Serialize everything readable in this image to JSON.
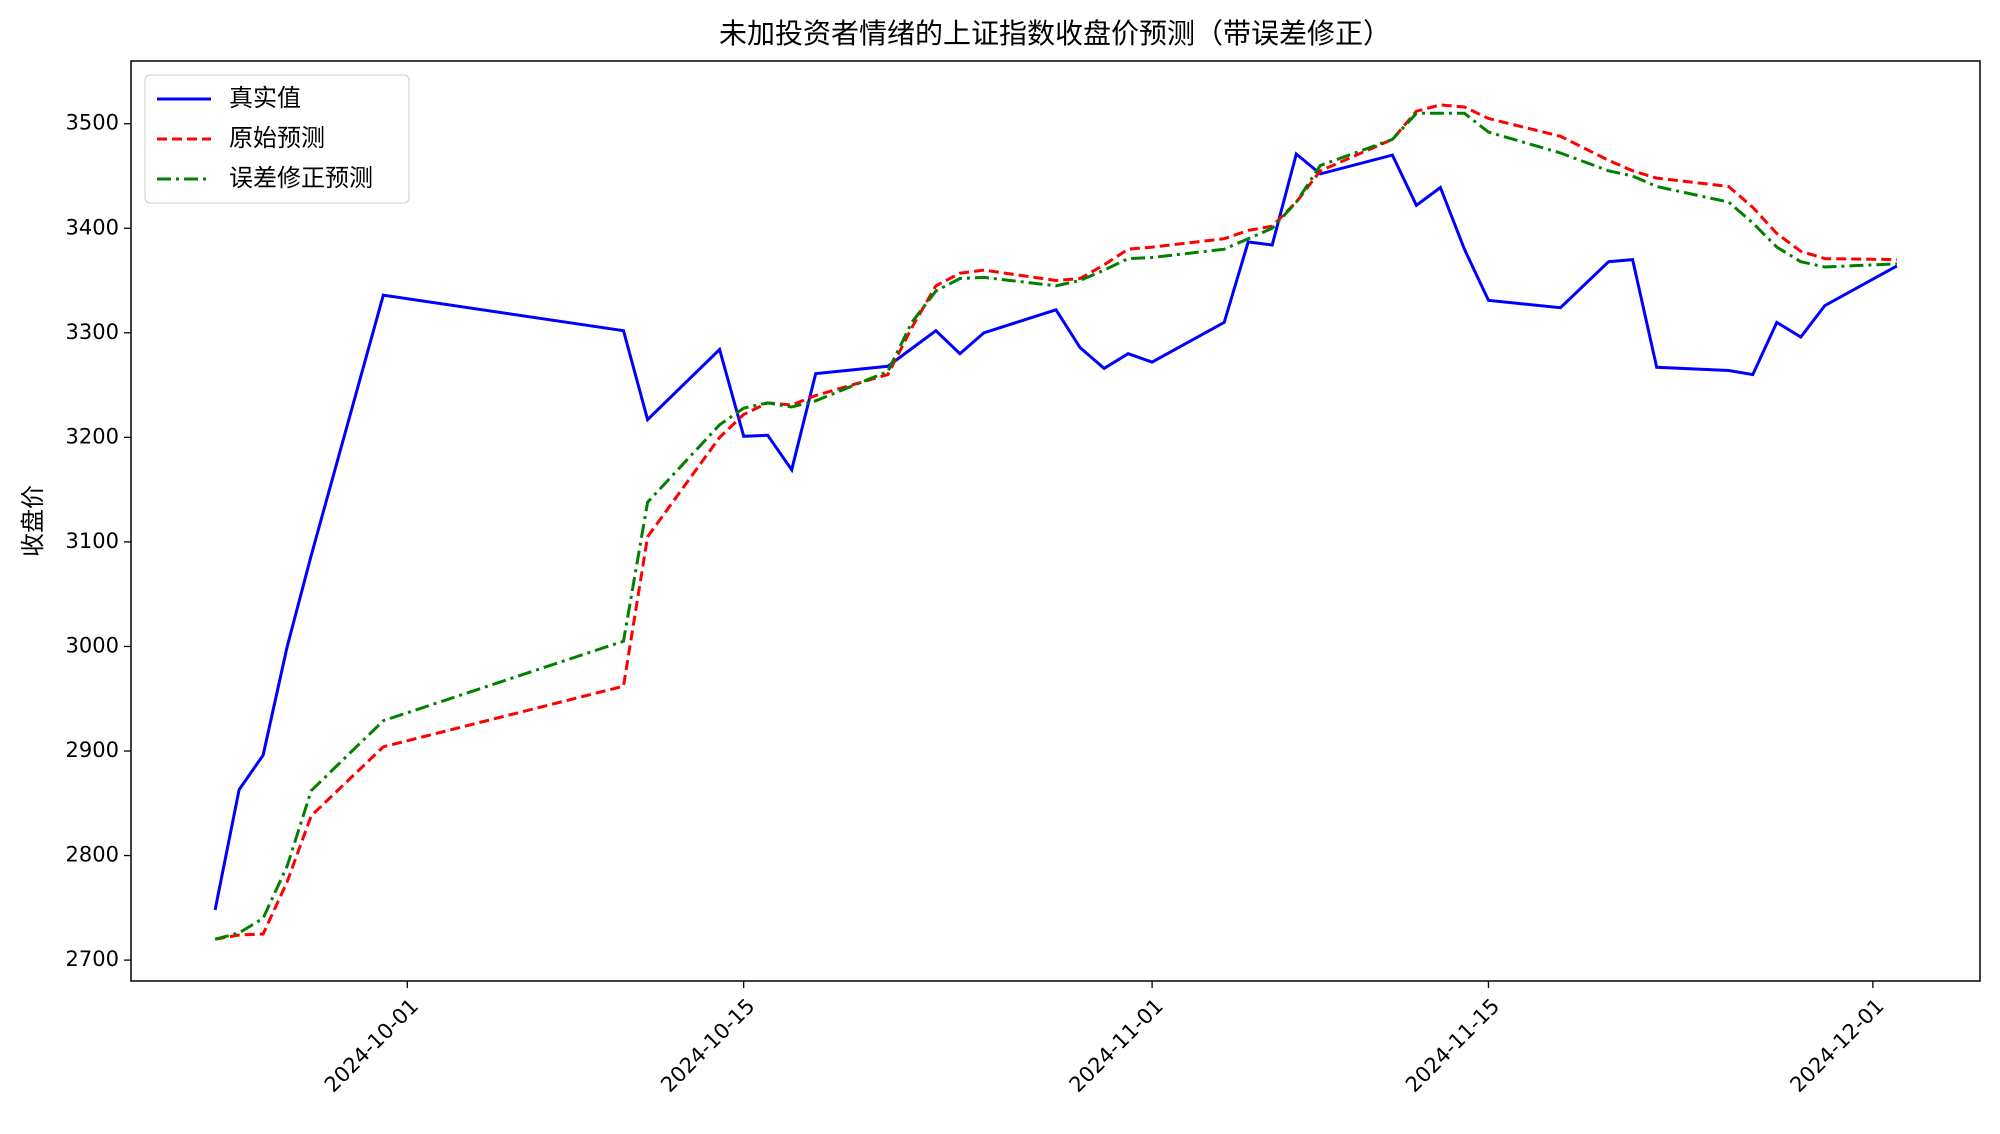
{
  "chart_data": {
    "type": "line",
    "title": "未加投资者情绪的上证指数收盘价预测（带误差修正）",
    "y_label": "收盘价",
    "x": [
      "2024-09-23",
      "2024-09-24",
      "2024-09-25",
      "2024-09-26",
      "2024-09-27",
      "2024-09-30",
      "2024-10-10",
      "2024-10-11",
      "2024-10-14",
      "2024-10-15",
      "2024-10-16",
      "2024-10-17",
      "2024-10-18",
      "2024-10-21",
      "2024-10-22",
      "2024-10-23",
      "2024-10-24",
      "2024-10-25",
      "2024-10-28",
      "2024-10-29",
      "2024-10-30",
      "2024-10-31",
      "2024-11-01",
      "2024-11-04",
      "2024-11-05",
      "2024-11-06",
      "2024-11-07",
      "2024-11-08",
      "2024-11-11",
      "2024-11-12",
      "2024-11-13",
      "2024-11-14",
      "2024-11-15",
      "2024-11-18",
      "2024-11-20",
      "2024-11-21",
      "2024-11-22",
      "2024-11-25",
      "2024-11-26",
      "2024-11-27",
      "2024-11-28",
      "2024-11-29",
      "2024-12-02"
    ],
    "series": [
      {
        "name": "真实值",
        "color": "#0000ff",
        "style": "solid",
        "values": [
          2748,
          2863,
          2896,
          3000,
          3087,
          3336,
          3302,
          3217,
          3284,
          3201,
          3202,
          3169,
          3261,
          3268,
          3285,
          3302,
          3280,
          3300,
          3322,
          3286,
          3266,
          3280,
          3272,
          3310,
          3387,
          3384,
          3471,
          3452,
          3470,
          3422,
          3439,
          3380,
          3331,
          3324,
          3368,
          3370,
          3267,
          3264,
          3260,
          3310,
          3296,
          3326,
          3364
        ]
      },
      {
        "name": "原始预测",
        "color": "#ff0000",
        "style": "dashed",
        "values": [
          2720,
          2724,
          2725,
          2775,
          2838,
          2904,
          2962,
          3105,
          3200,
          3222,
          3233,
          3231,
          3240,
          3260,
          3305,
          3345,
          3357,
          3360,
          3350,
          3352,
          3365,
          3380,
          3382,
          3390,
          3398,
          3402,
          3425,
          3455,
          3485,
          3512,
          3518,
          3516,
          3505,
          3488,
          3465,
          3455,
          3448,
          3440,
          3420,
          3395,
          3378,
          3371,
          3370
        ]
      },
      {
        "name": "误差修正预测",
        "color": "#008000",
        "style": "dashdot",
        "values": [
          2720,
          2726,
          2740,
          2790,
          2862,
          2929,
          3005,
          3138,
          3212,
          3228,
          3233,
          3229,
          3235,
          3263,
          3310,
          3340,
          3352,
          3353,
          3345,
          3350,
          3360,
          3371,
          3372,
          3380,
          3390,
          3400,
          3425,
          3460,
          3485,
          3510,
          3510,
          3510,
          3492,
          3472,
          3455,
          3450,
          3440,
          3425,
          3405,
          3382,
          3368,
          3363,
          3366
        ]
      }
    ],
    "xlim": [
      "2024-09-19T12:00:00",
      "2024-12-05T11:00:00"
    ],
    "xticks": [
      "2024-10-01",
      "2024-10-15",
      "2024-11-01",
      "2024-11-15",
      "2024-12-01"
    ],
    "ylim": [
      2680,
      3560
    ],
    "yticks": [
      2700,
      2800,
      2900,
      3000,
      3100,
      3200,
      3300,
      3400,
      3500
    ],
    "grid": false,
    "legend": "upper left"
  }
}
